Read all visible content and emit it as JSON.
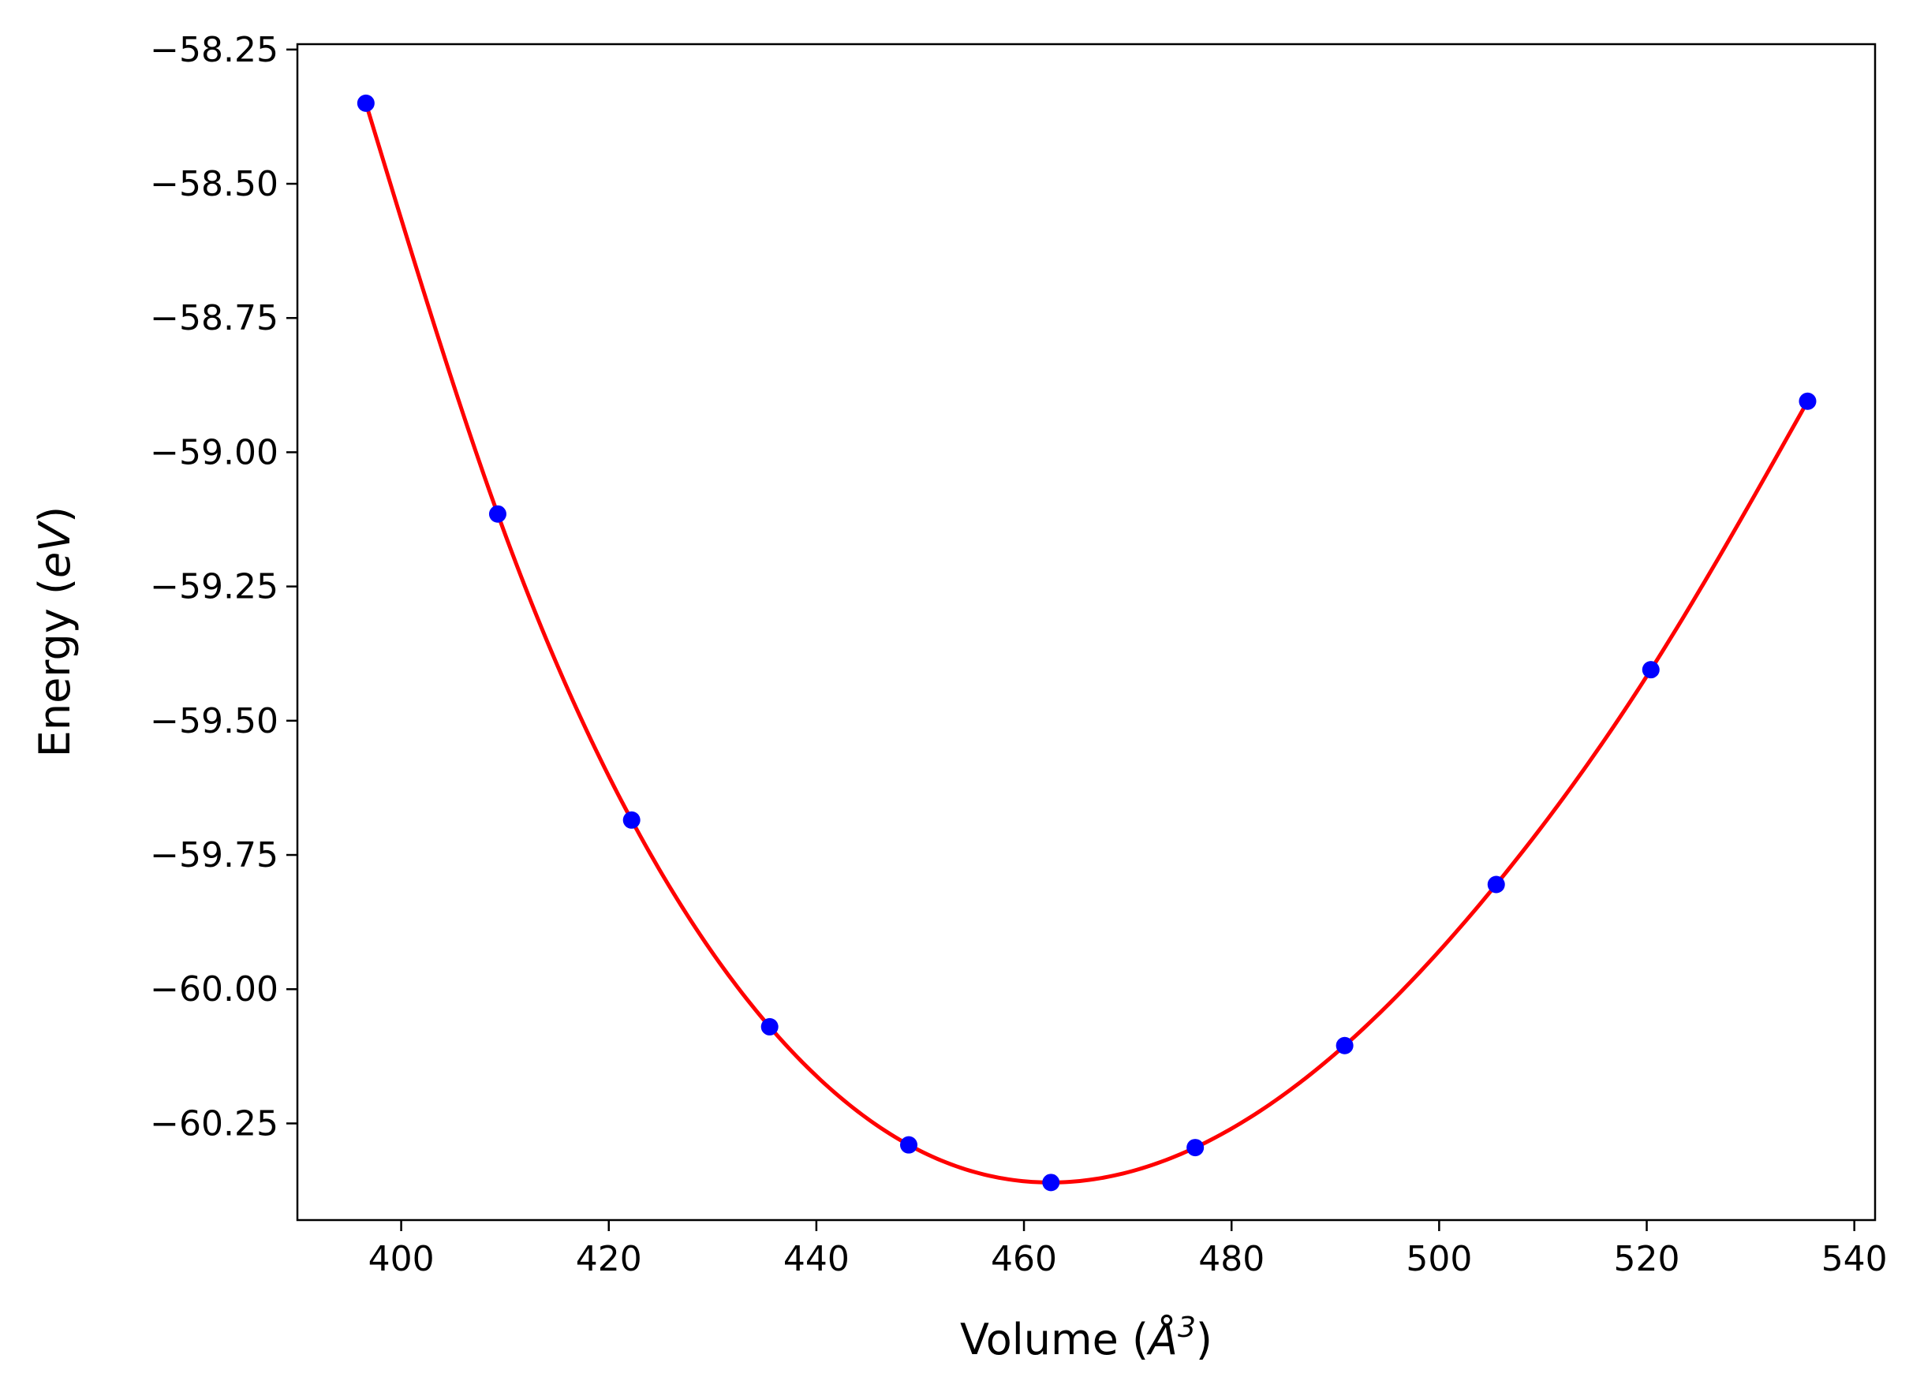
{
  "chart_data": {
    "type": "scatter",
    "title": "",
    "xlabel": "Volume (Å³)",
    "xlabel_parts": [
      "Volume (",
      "Å",
      "3",
      ")"
    ],
    "ylabel": "Energy (eV)",
    "ylabel_parts": [
      "Energy (",
      "eV",
      ")"
    ],
    "xlim": [
      390,
      542
    ],
    "ylim": [
      -60.43,
      -58.24
    ],
    "xticks": [
      400,
      420,
      440,
      460,
      480,
      500,
      520,
      540
    ],
    "xtick_labels": [
      "400",
      "420",
      "440",
      "460",
      "480",
      "500",
      "520",
      "540"
    ],
    "yticks": [
      -58.25,
      -58.5,
      -58.75,
      -59.0,
      -59.25,
      -59.5,
      -59.75,
      -60.0,
      -60.25
    ],
    "ytick_labels": [
      "−58.25",
      "−58.50",
      "−58.75",
      "−59.00",
      "−59.25",
      "−59.50",
      "−59.75",
      "−60.00",
      "−60.25"
    ],
    "grid": false,
    "legend": "none",
    "series": [
      {
        "kind": "points",
        "color": "#0000ff",
        "x": [
          396.6,
          409.3,
          422.2,
          435.5,
          448.9,
          462.6,
          476.5,
          490.9,
          505.5,
          520.4,
          535.5
        ],
        "y": [
          -58.35,
          -59.115,
          -59.685,
          -60.07,
          -60.29,
          -60.36,
          -60.295,
          -60.105,
          -59.805,
          -59.405,
          -58.905
        ]
      },
      {
        "kind": "fit-curve",
        "color": "#ff0000",
        "x": [
          396.6,
          409.3,
          422.2,
          435.5,
          448.9,
          462.6,
          476.5,
          490.9,
          505.5,
          520.4,
          535.5
        ],
        "y": [
          -58.35,
          -59.115,
          -59.685,
          -60.07,
          -60.29,
          -60.36,
          -60.295,
          -60.105,
          -59.805,
          -59.405,
          -58.905
        ]
      }
    ]
  }
}
